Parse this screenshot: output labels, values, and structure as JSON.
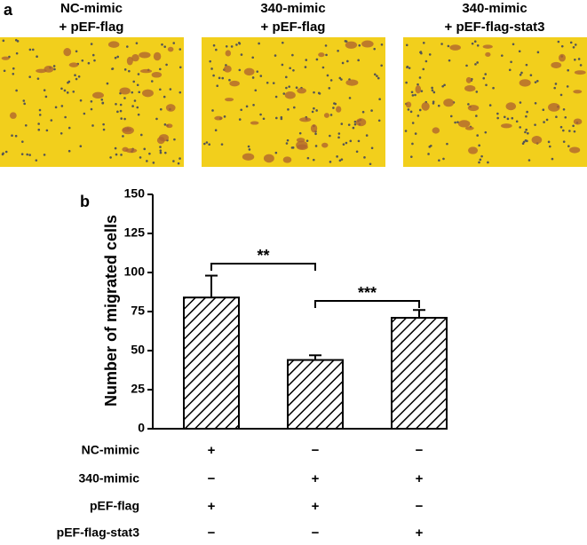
{
  "panel_a": {
    "label": "a",
    "images": [
      {
        "lines": [
          "NC-mimic",
          "+ pEF-flag"
        ]
      },
      {
        "lines": [
          "340-mimic",
          "+ pEF-flag"
        ]
      },
      {
        "lines": [
          "340-mimic",
          "+ pEF-flag-stat3"
        ]
      }
    ]
  },
  "chart_data": {
    "type": "bar",
    "panel_label": "b",
    "y_label": "Number of migrated cells",
    "categories": [
      null,
      null,
      null
    ],
    "values": [
      84,
      44,
      71
    ],
    "errors": [
      14,
      3,
      5
    ],
    "ylim": [
      0,
      150
    ],
    "yticks": [
      0,
      25,
      50,
      75,
      100,
      125,
      150
    ],
    "annotations": [
      "**",
      "***"
    ],
    "conditions": [
      {
        "name": "NC-mimic",
        "marks": [
          "+",
          "−",
          "−"
        ]
      },
      {
        "name": "340-mimic",
        "marks": [
          "−",
          "+",
          "+"
        ]
      },
      {
        "name": "pEF-flag",
        "marks": [
          "+",
          "+",
          "−"
        ]
      },
      {
        "name": "pEF-flag-stat3",
        "marks": [
          "−",
          "−",
          "+"
        ]
      }
    ]
  }
}
